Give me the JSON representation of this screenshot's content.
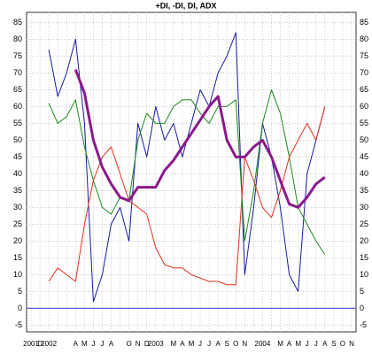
{
  "chart_data": {
    "type": "line",
    "title": "+DI, -DI, DI, ADX",
    "categories": [
      "2001",
      "D",
      "2002",
      null,
      null,
      "A",
      "M",
      "J",
      "J",
      "A",
      null,
      "O",
      "N",
      "D",
      "2003",
      null,
      "M",
      "A",
      "M",
      "J",
      "J",
      "A",
      "S",
      "O",
      "N",
      null,
      "2004",
      null,
      "M",
      "A",
      "M",
      "J",
      "J",
      "A",
      "S",
      "O",
      "N"
    ],
    "series": [
      {
        "color": "#1a1aa0",
        "values": [
          null,
          null,
          77,
          63,
          70,
          80,
          55,
          2,
          10,
          25,
          30,
          20,
          55,
          45,
          60,
          50,
          55,
          45,
          55,
          65,
          60,
          70,
          75,
          82,
          10,
          30,
          55,
          45,
          30,
          10,
          5,
          40,
          50,
          60,
          null,
          null,
          null
        ]
      },
      {
        "color": "#1a8a1a",
        "values": [
          null,
          null,
          61,
          55,
          57,
          62,
          48,
          38,
          30,
          28,
          33,
          32,
          50,
          58,
          55,
          55,
          60,
          62,
          62,
          58,
          55,
          60,
          60,
          62,
          20,
          35,
          55,
          65,
          58,
          45,
          30,
          25,
          20,
          16,
          null,
          null,
          null
        ]
      },
      {
        "color": "#e0301e",
        "values": [
          null,
          null,
          8,
          12,
          10,
          8,
          25,
          38,
          45,
          48,
          40,
          32,
          30,
          28,
          18,
          13,
          12,
          12,
          10,
          9,
          8,
          8,
          7,
          7,
          45,
          38,
          30,
          27,
          35,
          45,
          50,
          55,
          50,
          60,
          null,
          null,
          null
        ]
      },
      {
        "color": "#8a1a8a",
        "width": 3,
        "values": [
          null,
          null,
          null,
          null,
          null,
          71,
          64,
          50,
          42,
          37,
          33,
          32,
          36,
          36,
          36,
          41,
          44,
          48,
          52,
          56,
          60,
          63,
          50,
          45,
          45,
          48,
          50,
          45,
          38,
          31,
          30,
          33,
          37,
          39,
          null,
          null,
          null
        ]
      }
    ],
    "hline": {
      "value": 0,
      "color": "#6060e0"
    },
    "ylim": [
      -7,
      88
    ],
    "yticks": [
      -5,
      0,
      5,
      10,
      15,
      20,
      25,
      30,
      35,
      40,
      45,
      50,
      55,
      60,
      65,
      70,
      75,
      80,
      85
    ],
    "grid": true
  }
}
